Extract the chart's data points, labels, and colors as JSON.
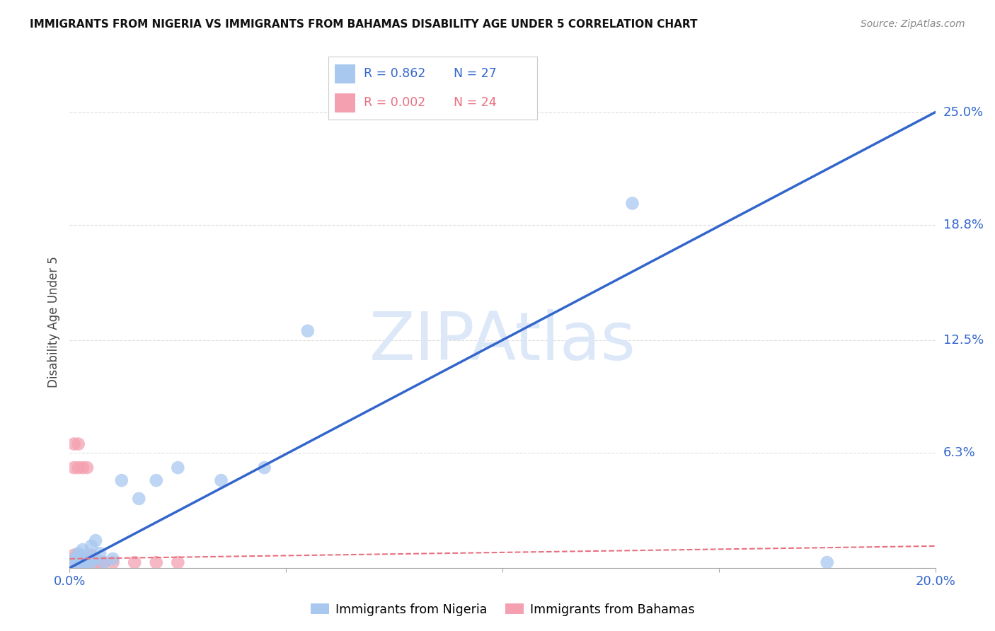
{
  "title": "IMMIGRANTS FROM NIGERIA VS IMMIGRANTS FROM BAHAMAS DISABILITY AGE UNDER 5 CORRELATION CHART",
  "source": "Source: ZipAtlas.com",
  "xlabel_nigeria": "Immigrants from Nigeria",
  "xlabel_bahamas": "Immigrants from Bahamas",
  "ylabel": "Disability Age Under 5",
  "xlim": [
    0.0,
    0.2
  ],
  "ylim": [
    0.0,
    0.27
  ],
  "nigeria_R": 0.862,
  "nigeria_N": 27,
  "bahamas_R": 0.002,
  "bahamas_N": 24,
  "nigeria_color": "#A8C8F0",
  "bahamas_color": "#F4A0B0",
  "nigeria_line_color": "#3366CC",
  "bahamas_line_color": "#E87080",
  "watermark": "ZIPAtlas",
  "watermark_color": "#DCE8F8",
  "nigeria_x": [
    0.001,
    0.001,
    0.002,
    0.002,
    0.002,
    0.003,
    0.003,
    0.003,
    0.004,
    0.004,
    0.005,
    0.005,
    0.005,
    0.006,
    0.006,
    0.007,
    0.008,
    0.01,
    0.012,
    0.016,
    0.02,
    0.025,
    0.035,
    0.045,
    0.055,
    0.13,
    0.175
  ],
  "nigeria_y": [
    0.003,
    0.005,
    0.003,
    0.006,
    0.008,
    0.003,
    0.005,
    0.01,
    0.003,
    0.007,
    0.003,
    0.005,
    0.012,
    0.005,
    0.015,
    0.008,
    0.003,
    0.005,
    0.048,
    0.038,
    0.048,
    0.055,
    0.048,
    0.055,
    0.13,
    0.2,
    0.003
  ],
  "bahamas_x": [
    0.001,
    0.001,
    0.001,
    0.001,
    0.001,
    0.002,
    0.002,
    0.002,
    0.002,
    0.002,
    0.003,
    0.003,
    0.003,
    0.004,
    0.004,
    0.005,
    0.005,
    0.006,
    0.007,
    0.008,
    0.01,
    0.015,
    0.02,
    0.025
  ],
  "bahamas_y": [
    0.003,
    0.005,
    0.007,
    0.055,
    0.068,
    0.003,
    0.005,
    0.007,
    0.055,
    0.068,
    0.003,
    0.005,
    0.055,
    0.003,
    0.055,
    0.003,
    0.007,
    0.003,
    0.003,
    0.003,
    0.003,
    0.003,
    0.003,
    0.003
  ],
  "background_color": "#FFFFFF",
  "grid_color": "#DDDDDD",
  "ytick_vals": [
    0.063,
    0.125,
    0.188,
    0.25
  ],
  "ytick_labels": [
    "6.3%",
    "12.5%",
    "18.8%",
    "25.0%"
  ]
}
